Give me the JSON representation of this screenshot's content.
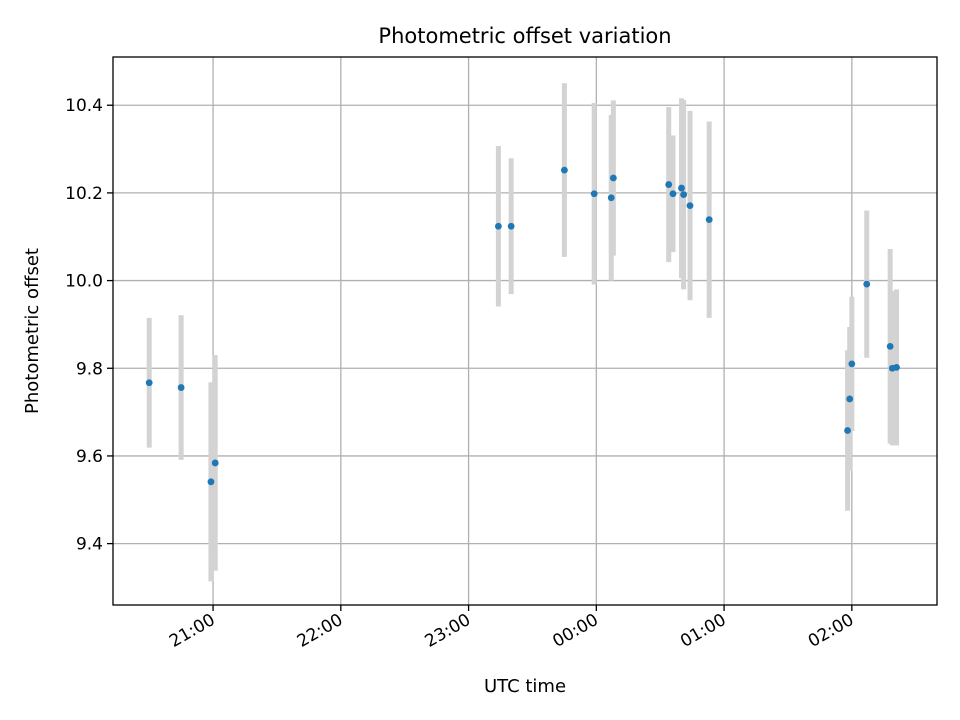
{
  "chart_data": {
    "type": "scatter",
    "title": "Photometric offset variation",
    "xlabel": "UTC time",
    "ylabel": "Photometric offset",
    "x_is_time": true,
    "xlim": [
      "20:13",
      "02:40"
    ],
    "ylim": [
      9.26,
      10.51
    ],
    "x_ticks": [
      "21:00",
      "22:00",
      "23:00",
      "00:00",
      "01:00",
      "02:00"
    ],
    "y_ticks": [
      "9.4",
      "9.6",
      "9.8",
      "10.0",
      "10.2",
      "10.4"
    ],
    "grid": true,
    "colors": {
      "point": "#1f77b4",
      "errorbar": "#d3d3d3",
      "grid": "#b0b0b0"
    },
    "points": [
      {
        "time": "20:30",
        "y": 9.767,
        "err": 0.148
      },
      {
        "time": "20:45",
        "y": 9.756,
        "err": 0.165
      },
      {
        "time": "20:59",
        "y": 9.541,
        "err": 0.227
      },
      {
        "time": "21:01",
        "y": 9.584,
        "err": 0.246
      },
      {
        "time": "23:14",
        "y": 10.124,
        "err": 0.183
      },
      {
        "time": "23:20",
        "y": 10.124,
        "err": 0.155
      },
      {
        "time": "23:45",
        "y": 10.252,
        "err": 0.198
      },
      {
        "time": "23:59",
        "y": 10.198,
        "err": 0.207
      },
      {
        "time": "00:07",
        "y": 10.189,
        "err": 0.189
      },
      {
        "time": "00:08",
        "y": 10.234,
        "err": 0.177
      },
      {
        "time": "00:34",
        "y": 10.219,
        "err": 0.177
      },
      {
        "time": "00:36",
        "y": 10.198,
        "err": 0.133
      },
      {
        "time": "00:40",
        "y": 10.211,
        "err": 0.205
      },
      {
        "time": "00:41",
        "y": 10.196,
        "err": 0.216
      },
      {
        "time": "00:44",
        "y": 10.171,
        "err": 0.216
      },
      {
        "time": "00:53",
        "y": 10.139,
        "err": 0.224
      },
      {
        "time": "01:58",
        "y": 9.658,
        "err": 0.183
      },
      {
        "time": "01:59",
        "y": 9.73,
        "err": 0.164
      },
      {
        "time": "02:00",
        "y": 9.81,
        "err": 0.153
      },
      {
        "time": "02:07",
        "y": 9.992,
        "err": 0.168
      },
      {
        "time": "02:18",
        "y": 9.85,
        "err": 0.222
      },
      {
        "time": "02:19",
        "y": 9.8,
        "err": 0.176
      },
      {
        "time": "02:21",
        "y": 9.802,
        "err": 0.178
      }
    ]
  }
}
